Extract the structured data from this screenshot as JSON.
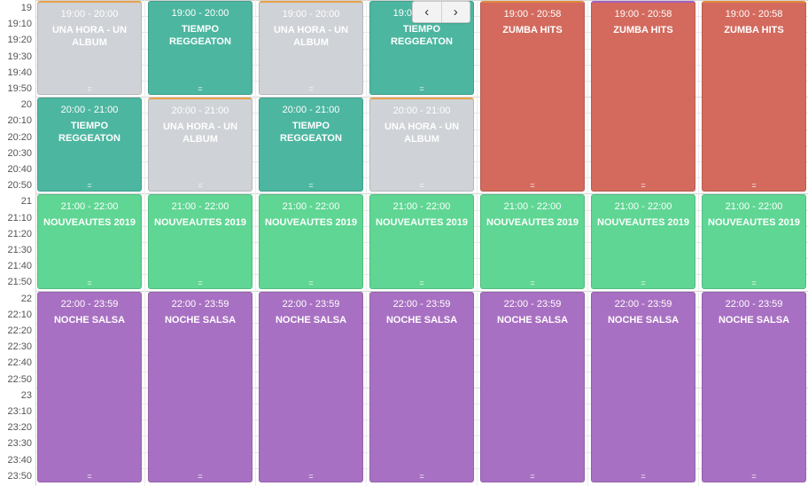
{
  "time_slots": [
    "19",
    "19:10",
    "19:20",
    "19:30",
    "19:40",
    "19:50",
    "20",
    "20:10",
    "20:20",
    "20:30",
    "20:40",
    "20:50",
    "21",
    "21:10",
    "21:20",
    "21:30",
    "21:40",
    "21:50",
    "22",
    "22:10",
    "22:20",
    "22:30",
    "22:40",
    "22:50",
    "23",
    "23:10",
    "23:20",
    "23:30",
    "23:40",
    "23:50"
  ],
  "colors": {
    "gray": "#cfd2d6",
    "teal": "#4cb6a0",
    "red": "#d36a5d",
    "green": "#5fd693",
    "purple": "#a870c2"
  },
  "nav": {
    "prev_icon": "chevron-left-icon",
    "next_icon": "chevron-right-icon"
  },
  "days": [
    {
      "events": [
        {
          "time": "19:00 - 20:00",
          "title": "UNA HORA - UN ALBUM",
          "color": "gray",
          "start": 0,
          "slots": 6
        },
        {
          "time": "20:00 - 21:00",
          "title": "TIEMPO REGGEATON",
          "color": "teal",
          "start": 6,
          "slots": 6
        },
        {
          "time": "21:00 - 22:00",
          "title": "NOUVEAUTES 2019",
          "color": "green",
          "start": 12,
          "slots": 6
        },
        {
          "time": "22:00 - 23:59",
          "title": "NOCHE SALSA",
          "color": "purple",
          "start": 18,
          "slots": 12
        }
      ]
    },
    {
      "events": [
        {
          "time": "19:00 - 20:00",
          "title": "TIEMPO REGGEATON",
          "color": "teal",
          "start": 0,
          "slots": 6
        },
        {
          "time": "20:00 - 21:00",
          "title": "UNA HORA - UN ALBUM",
          "color": "gray",
          "start": 6,
          "slots": 6
        },
        {
          "time": "21:00 - 22:00",
          "title": "NOUVEAUTES 2019",
          "color": "green",
          "start": 12,
          "slots": 6
        },
        {
          "time": "22:00 - 23:59",
          "title": "NOCHE SALSA",
          "color": "purple",
          "start": 18,
          "slots": 12
        }
      ]
    },
    {
      "events": [
        {
          "time": "19:00 - 20:00",
          "title": "UNA HORA - UN ALBUM",
          "color": "gray",
          "start": 0,
          "slots": 6
        },
        {
          "time": "20:00 - 21:00",
          "title": "TIEMPO REGGEATON",
          "color": "teal",
          "start": 6,
          "slots": 6
        },
        {
          "time": "21:00 - 22:00",
          "title": "NOUVEAUTES 2019",
          "color": "green",
          "start": 12,
          "slots": 6
        },
        {
          "time": "22:00 - 23:59",
          "title": "NOCHE SALSA",
          "color": "purple",
          "start": 18,
          "slots": 12
        }
      ]
    },
    {
      "events": [
        {
          "time": "19:00 - 20:00",
          "title": "TIEMPO REGGEATON",
          "color": "teal",
          "start": 0,
          "slots": 6
        },
        {
          "time": "20:00 - 21:00",
          "title": "UNA HORA - UN ALBUM",
          "color": "gray",
          "start": 6,
          "slots": 6
        },
        {
          "time": "21:00 - 22:00",
          "title": "NOUVEAUTES 2019",
          "color": "green",
          "start": 12,
          "slots": 6
        },
        {
          "time": "22:00 - 23:59",
          "title": "NOCHE SALSA",
          "color": "purple",
          "start": 18,
          "slots": 12
        }
      ]
    },
    {
      "events": [
        {
          "time": "19:00 - 20:58",
          "title": "ZUMBA HITS",
          "color": "red",
          "start": 0,
          "slots": 12
        },
        {
          "time": "21:00 - 22:00",
          "title": "NOUVEAUTES 2019",
          "color": "green",
          "start": 12,
          "slots": 6
        },
        {
          "time": "22:00 - 23:59",
          "title": "NOCHE SALSA",
          "color": "purple",
          "start": 18,
          "slots": 12
        }
      ]
    },
    {
      "events": [
        {
          "time": "19:00 - 20:58",
          "title": "ZUMBA HITS",
          "color": "red",
          "start": 0,
          "slots": 12
        },
        {
          "time": "21:00 - 22:00",
          "title": "NOUVEAUTES 2019",
          "color": "green",
          "start": 12,
          "slots": 6
        },
        {
          "time": "22:00 - 23:59",
          "title": "NOCHE SALSA",
          "color": "purple",
          "start": 18,
          "slots": 12
        }
      ]
    },
    {
      "events": [
        {
          "time": "19:00 - 20:58",
          "title": "ZUMBA HITS",
          "color": "red",
          "start": 0,
          "slots": 12
        },
        {
          "time": "21:00 - 22:00",
          "title": "NOUVEAUTES 2019",
          "color": "green",
          "start": 12,
          "slots": 6
        },
        {
          "time": "22:00 - 23:59",
          "title": "NOCHE SALSA",
          "color": "purple",
          "start": 18,
          "slots": 12
        }
      ]
    }
  ]
}
